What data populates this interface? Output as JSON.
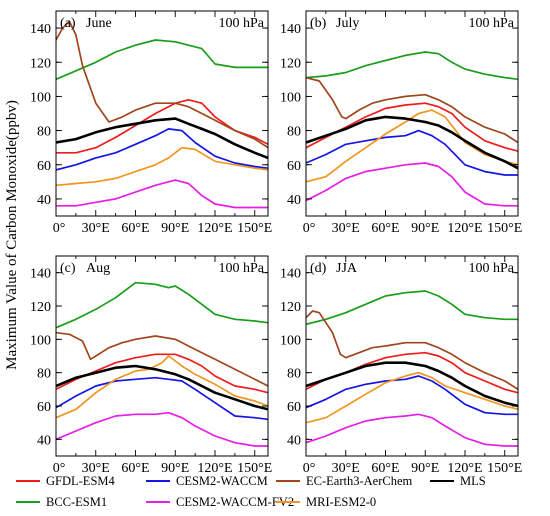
{
  "figure": {
    "ylabel": "Maximum Value of Carbon Monoxide(ppbv)",
    "xtick_labels": [
      "0°",
      "30°E",
      "60°E",
      "90°E",
      "120°E",
      "150°E"
    ],
    "ytick_labels": [
      "40",
      "60",
      "80",
      "100",
      "120",
      "140"
    ]
  },
  "chart_data": [
    {
      "type": "line",
      "panel_tag": "(a)",
      "title": "June",
      "level": "100 hPa",
      "xlim": [
        0,
        160
      ],
      "ylim": [
        30,
        150
      ],
      "xticks": [
        0,
        30,
        60,
        90,
        120,
        150
      ],
      "yticks": [
        40,
        60,
        80,
        100,
        120,
        140
      ],
      "series": [
        {
          "name": "GFDL-ESM4",
          "color": "#ee1c1c",
          "x": [
            0,
            15,
            30,
            45,
            60,
            75,
            90,
            100,
            110,
            120,
            135,
            150,
            160
          ],
          "y": [
            67,
            67,
            70,
            76,
            83,
            90,
            96,
            98,
            96,
            88,
            80,
            76,
            72
          ]
        },
        {
          "name": "BCC-ESM1",
          "color": "#1a9e1a",
          "x": [
            0,
            15,
            30,
            45,
            60,
            75,
            90,
            100,
            110,
            120,
            135,
            150,
            160
          ],
          "y": [
            110,
            115,
            120,
            126,
            130,
            133,
            132,
            130,
            128,
            119,
            117,
            117,
            117
          ]
        },
        {
          "name": "CESM2-WACCM",
          "color": "#1515e6",
          "x": [
            0,
            15,
            30,
            45,
            60,
            75,
            85,
            95,
            105,
            120,
            135,
            150,
            160
          ],
          "y": [
            57,
            60,
            64,
            67,
            72,
            77,
            81,
            80,
            73,
            65,
            61,
            59,
            58
          ]
        },
        {
          "name": "CESM2-WACCM-FV2",
          "color": "#e61ee6",
          "x": [
            0,
            15,
            30,
            45,
            60,
            75,
            90,
            100,
            110,
            120,
            135,
            150,
            160
          ],
          "y": [
            36,
            36,
            38,
            40,
            44,
            48,
            51,
            49,
            42,
            37,
            35,
            35,
            35
          ]
        },
        {
          "name": "EC-Earth3-AerChem",
          "color": "#a0461e",
          "x": [
            0,
            5,
            10,
            15,
            20,
            30,
            40,
            50,
            60,
            75,
            90,
            100,
            110,
            120,
            135,
            150,
            160
          ],
          "y": [
            133,
            140,
            144,
            136,
            118,
            96,
            85,
            88,
            92,
            96,
            96,
            94,
            90,
            86,
            80,
            75,
            70
          ]
        },
        {
          "name": "MRI-ESM2-0",
          "color": "#f09620",
          "x": [
            0,
            15,
            30,
            45,
            60,
            75,
            85,
            95,
            105,
            120,
            135,
            150,
            160
          ],
          "y": [
            48,
            49,
            50,
            52,
            56,
            60,
            64,
            70,
            69,
            62,
            60,
            58,
            57
          ]
        },
        {
          "name": "MLS",
          "color": "#000000",
          "x": [
            0,
            15,
            30,
            45,
            60,
            75,
            90,
            100,
            110,
            120,
            135,
            150,
            160
          ],
          "y": [
            73,
            75,
            79,
            82,
            84,
            86,
            87,
            84,
            81,
            78,
            72,
            67,
            64
          ]
        }
      ]
    },
    {
      "type": "line",
      "panel_tag": "(b)",
      "title": "July",
      "level": "100 hPa",
      "xlim": [
        0,
        160
      ],
      "ylim": [
        30,
        150
      ],
      "xticks": [
        0,
        30,
        60,
        90,
        120,
        150
      ],
      "yticks": [
        40,
        60,
        80,
        100,
        120,
        140
      ],
      "series": [
        {
          "name": "GFDL-ESM4",
          "color": "#ee1c1c",
          "x": [
            0,
            15,
            30,
            45,
            60,
            75,
            90,
            100,
            110,
            120,
            135,
            150,
            160
          ],
          "y": [
            70,
            76,
            82,
            88,
            93,
            95,
            96,
            94,
            90,
            82,
            74,
            70,
            68
          ]
        },
        {
          "name": "BCC-ESM1",
          "color": "#1a9e1a",
          "x": [
            0,
            15,
            30,
            45,
            60,
            75,
            90,
            100,
            110,
            120,
            135,
            150,
            160
          ],
          "y": [
            111,
            112,
            114,
            118,
            121,
            124,
            126,
            125,
            120,
            116,
            113,
            111,
            110
          ]
        },
        {
          "name": "CESM2-WACCM",
          "color": "#1515e6",
          "x": [
            0,
            15,
            30,
            45,
            60,
            75,
            85,
            95,
            105,
            120,
            135,
            150,
            160
          ],
          "y": [
            61,
            66,
            72,
            74,
            76,
            77,
            80,
            77,
            72,
            60,
            56,
            54,
            54
          ]
        },
        {
          "name": "CESM2-WACCM-FV2",
          "color": "#e61ee6",
          "x": [
            0,
            15,
            30,
            45,
            60,
            75,
            90,
            100,
            110,
            120,
            135,
            150,
            160
          ],
          "y": [
            39,
            45,
            52,
            56,
            58,
            60,
            61,
            59,
            53,
            44,
            37,
            36,
            36
          ]
        },
        {
          "name": "EC-Earth3-AerChem",
          "color": "#a0461e",
          "x": [
            0,
            10,
            20,
            27,
            30,
            40,
            50,
            60,
            75,
            90,
            100,
            110,
            120,
            135,
            150,
            160
          ],
          "y": [
            111,
            109,
            98,
            88,
            87,
            92,
            96,
            98,
            100,
            101,
            98,
            94,
            88,
            82,
            78,
            73
          ]
        },
        {
          "name": "MRI-ESM2-0",
          "color": "#f09620",
          "x": [
            0,
            15,
            30,
            45,
            60,
            75,
            85,
            95,
            105,
            120,
            135,
            150,
            160
          ],
          "y": [
            50,
            53,
            62,
            70,
            78,
            85,
            90,
            92,
            88,
            73,
            66,
            62,
            60
          ]
        },
        {
          "name": "MLS",
          "color": "#000000",
          "x": [
            0,
            15,
            30,
            45,
            60,
            75,
            90,
            100,
            110,
            120,
            135,
            150,
            160
          ],
          "y": [
            73,
            77,
            81,
            86,
            88,
            87,
            85,
            83,
            79,
            74,
            67,
            62,
            58
          ]
        }
      ]
    },
    {
      "type": "line",
      "panel_tag": "(c)",
      "title": "Aug",
      "level": "100 hPa",
      "xlim": [
        0,
        160
      ],
      "ylim": [
        30,
        150
      ],
      "xticks": [
        0,
        30,
        60,
        90,
        120,
        150
      ],
      "yticks": [
        40,
        60,
        80,
        100,
        120,
        140
      ],
      "series": [
        {
          "name": "GFDL-ESM4",
          "color": "#ee1c1c",
          "x": [
            0,
            15,
            30,
            45,
            60,
            75,
            90,
            100,
            110,
            120,
            135,
            150,
            160
          ],
          "y": [
            70,
            76,
            81,
            86,
            89,
            91,
            91,
            88,
            84,
            78,
            72,
            70,
            68
          ]
        },
        {
          "name": "BCC-ESM1",
          "color": "#1a9e1a",
          "x": [
            0,
            15,
            30,
            45,
            60,
            75,
            85,
            90,
            100,
            110,
            120,
            135,
            150,
            160
          ],
          "y": [
            107,
            112,
            118,
            125,
            134,
            133,
            131,
            132,
            127,
            121,
            115,
            112,
            111,
            110
          ]
        },
        {
          "name": "CESM2-WACCM",
          "color": "#1515e6",
          "x": [
            0,
            15,
            30,
            45,
            60,
            75,
            85,
            95,
            105,
            120,
            135,
            150,
            160
          ],
          "y": [
            59,
            66,
            72,
            75,
            76,
            77,
            76,
            75,
            70,
            62,
            54,
            53,
            52
          ]
        },
        {
          "name": "CESM2-WACCM-FV2",
          "color": "#e61ee6",
          "x": [
            0,
            15,
            30,
            45,
            60,
            75,
            85,
            95,
            105,
            120,
            135,
            150,
            160
          ],
          "y": [
            40,
            45,
            50,
            54,
            55,
            55,
            56,
            53,
            48,
            42,
            38,
            36,
            36
          ]
        },
        {
          "name": "EC-Earth3-AerChem",
          "color": "#a0461e",
          "x": [
            0,
            10,
            20,
            26,
            30,
            40,
            50,
            60,
            75,
            90,
            100,
            110,
            120,
            135,
            150,
            160
          ],
          "y": [
            104,
            103,
            99,
            88,
            90,
            95,
            98,
            100,
            102,
            100,
            96,
            92,
            88,
            82,
            76,
            72
          ]
        },
        {
          "name": "MRI-ESM2-0",
          "color": "#f09620",
          "x": [
            0,
            15,
            30,
            45,
            60,
            70,
            80,
            85,
            95,
            105,
            120,
            135,
            150,
            160
          ],
          "y": [
            53,
            58,
            68,
            76,
            81,
            82,
            86,
            90,
            84,
            79,
            73,
            66,
            63,
            60
          ]
        },
        {
          "name": "MLS",
          "color": "#000000",
          "x": [
            0,
            15,
            30,
            45,
            60,
            75,
            90,
            100,
            110,
            120,
            135,
            150,
            160
          ],
          "y": [
            72,
            77,
            80,
            83,
            84,
            82,
            79,
            76,
            72,
            68,
            64,
            60,
            58
          ]
        }
      ]
    },
    {
      "type": "line",
      "panel_tag": "(d)",
      "title": "JJA",
      "level": "100 hPa",
      "xlim": [
        0,
        160
      ],
      "ylim": [
        30,
        150
      ],
      "xticks": [
        0,
        30,
        60,
        90,
        120,
        150
      ],
      "yticks": [
        40,
        60,
        80,
        100,
        120,
        140
      ],
      "series": [
        {
          "name": "GFDL-ESM4",
          "color": "#ee1c1c",
          "x": [
            0,
            15,
            30,
            45,
            60,
            75,
            90,
            100,
            110,
            120,
            135,
            150,
            160
          ],
          "y": [
            70,
            76,
            80,
            85,
            89,
            91,
            92,
            90,
            86,
            80,
            75,
            70,
            68
          ]
        },
        {
          "name": "BCC-ESM1",
          "color": "#1a9e1a",
          "x": [
            0,
            15,
            30,
            45,
            60,
            75,
            90,
            100,
            110,
            120,
            135,
            150,
            160
          ],
          "y": [
            109,
            112,
            116,
            121,
            126,
            128,
            129,
            126,
            121,
            115,
            113,
            112,
            112
          ]
        },
        {
          "name": "CESM2-WACCM",
          "color": "#1515e6",
          "x": [
            0,
            15,
            30,
            45,
            60,
            75,
            85,
            95,
            105,
            120,
            135,
            150,
            160
          ],
          "y": [
            59,
            64,
            70,
            73,
            75,
            76,
            78,
            75,
            70,
            61,
            56,
            55,
            55
          ]
        },
        {
          "name": "CESM2-WACCM-FV2",
          "color": "#e61ee6",
          "x": [
            0,
            15,
            30,
            45,
            60,
            75,
            85,
            95,
            105,
            120,
            135,
            150,
            160
          ],
          "y": [
            38,
            42,
            47,
            51,
            53,
            54,
            55,
            53,
            48,
            41,
            37,
            36,
            36
          ]
        },
        {
          "name": "EC-Earth3-AerChem",
          "color": "#a0461e",
          "x": [
            0,
            5,
            10,
            20,
            26,
            30,
            40,
            50,
            60,
            75,
            90,
            100,
            110,
            120,
            135,
            150,
            160
          ],
          "y": [
            113,
            117,
            116,
            104,
            91,
            89,
            92,
            95,
            96,
            98,
            98,
            95,
            91,
            86,
            80,
            75,
            70
          ]
        },
        {
          "name": "MRI-ESM2-0",
          "color": "#f09620",
          "x": [
            0,
            15,
            30,
            45,
            60,
            75,
            85,
            95,
            105,
            120,
            135,
            150,
            160
          ],
          "y": [
            50,
            53,
            60,
            67,
            74,
            78,
            80,
            77,
            72,
            68,
            64,
            60,
            58
          ]
        },
        {
          "name": "MLS",
          "color": "#000000",
          "x": [
            0,
            15,
            30,
            45,
            60,
            75,
            90,
            100,
            110,
            120,
            135,
            150,
            160
          ],
          "y": [
            72,
            76,
            80,
            84,
            86,
            86,
            84,
            81,
            77,
            72,
            66,
            62,
            60
          ]
        }
      ]
    }
  ],
  "legend": [
    {
      "name": "GFDL-ESM4",
      "color": "#ee1c1c"
    },
    {
      "name": "CESM2-WACCM",
      "color": "#1515e6"
    },
    {
      "name": "EC-Earth3-AerChem",
      "color": "#a0461e"
    },
    {
      "name": "MLS",
      "color": "#000000"
    },
    {
      "name": "BCC-ESM1",
      "color": "#1a9e1a"
    },
    {
      "name": "CESM2-WACCM-FV2",
      "color": "#e61ee6"
    },
    {
      "name": "MRI-ESM2-0",
      "color": "#f09620"
    }
  ]
}
